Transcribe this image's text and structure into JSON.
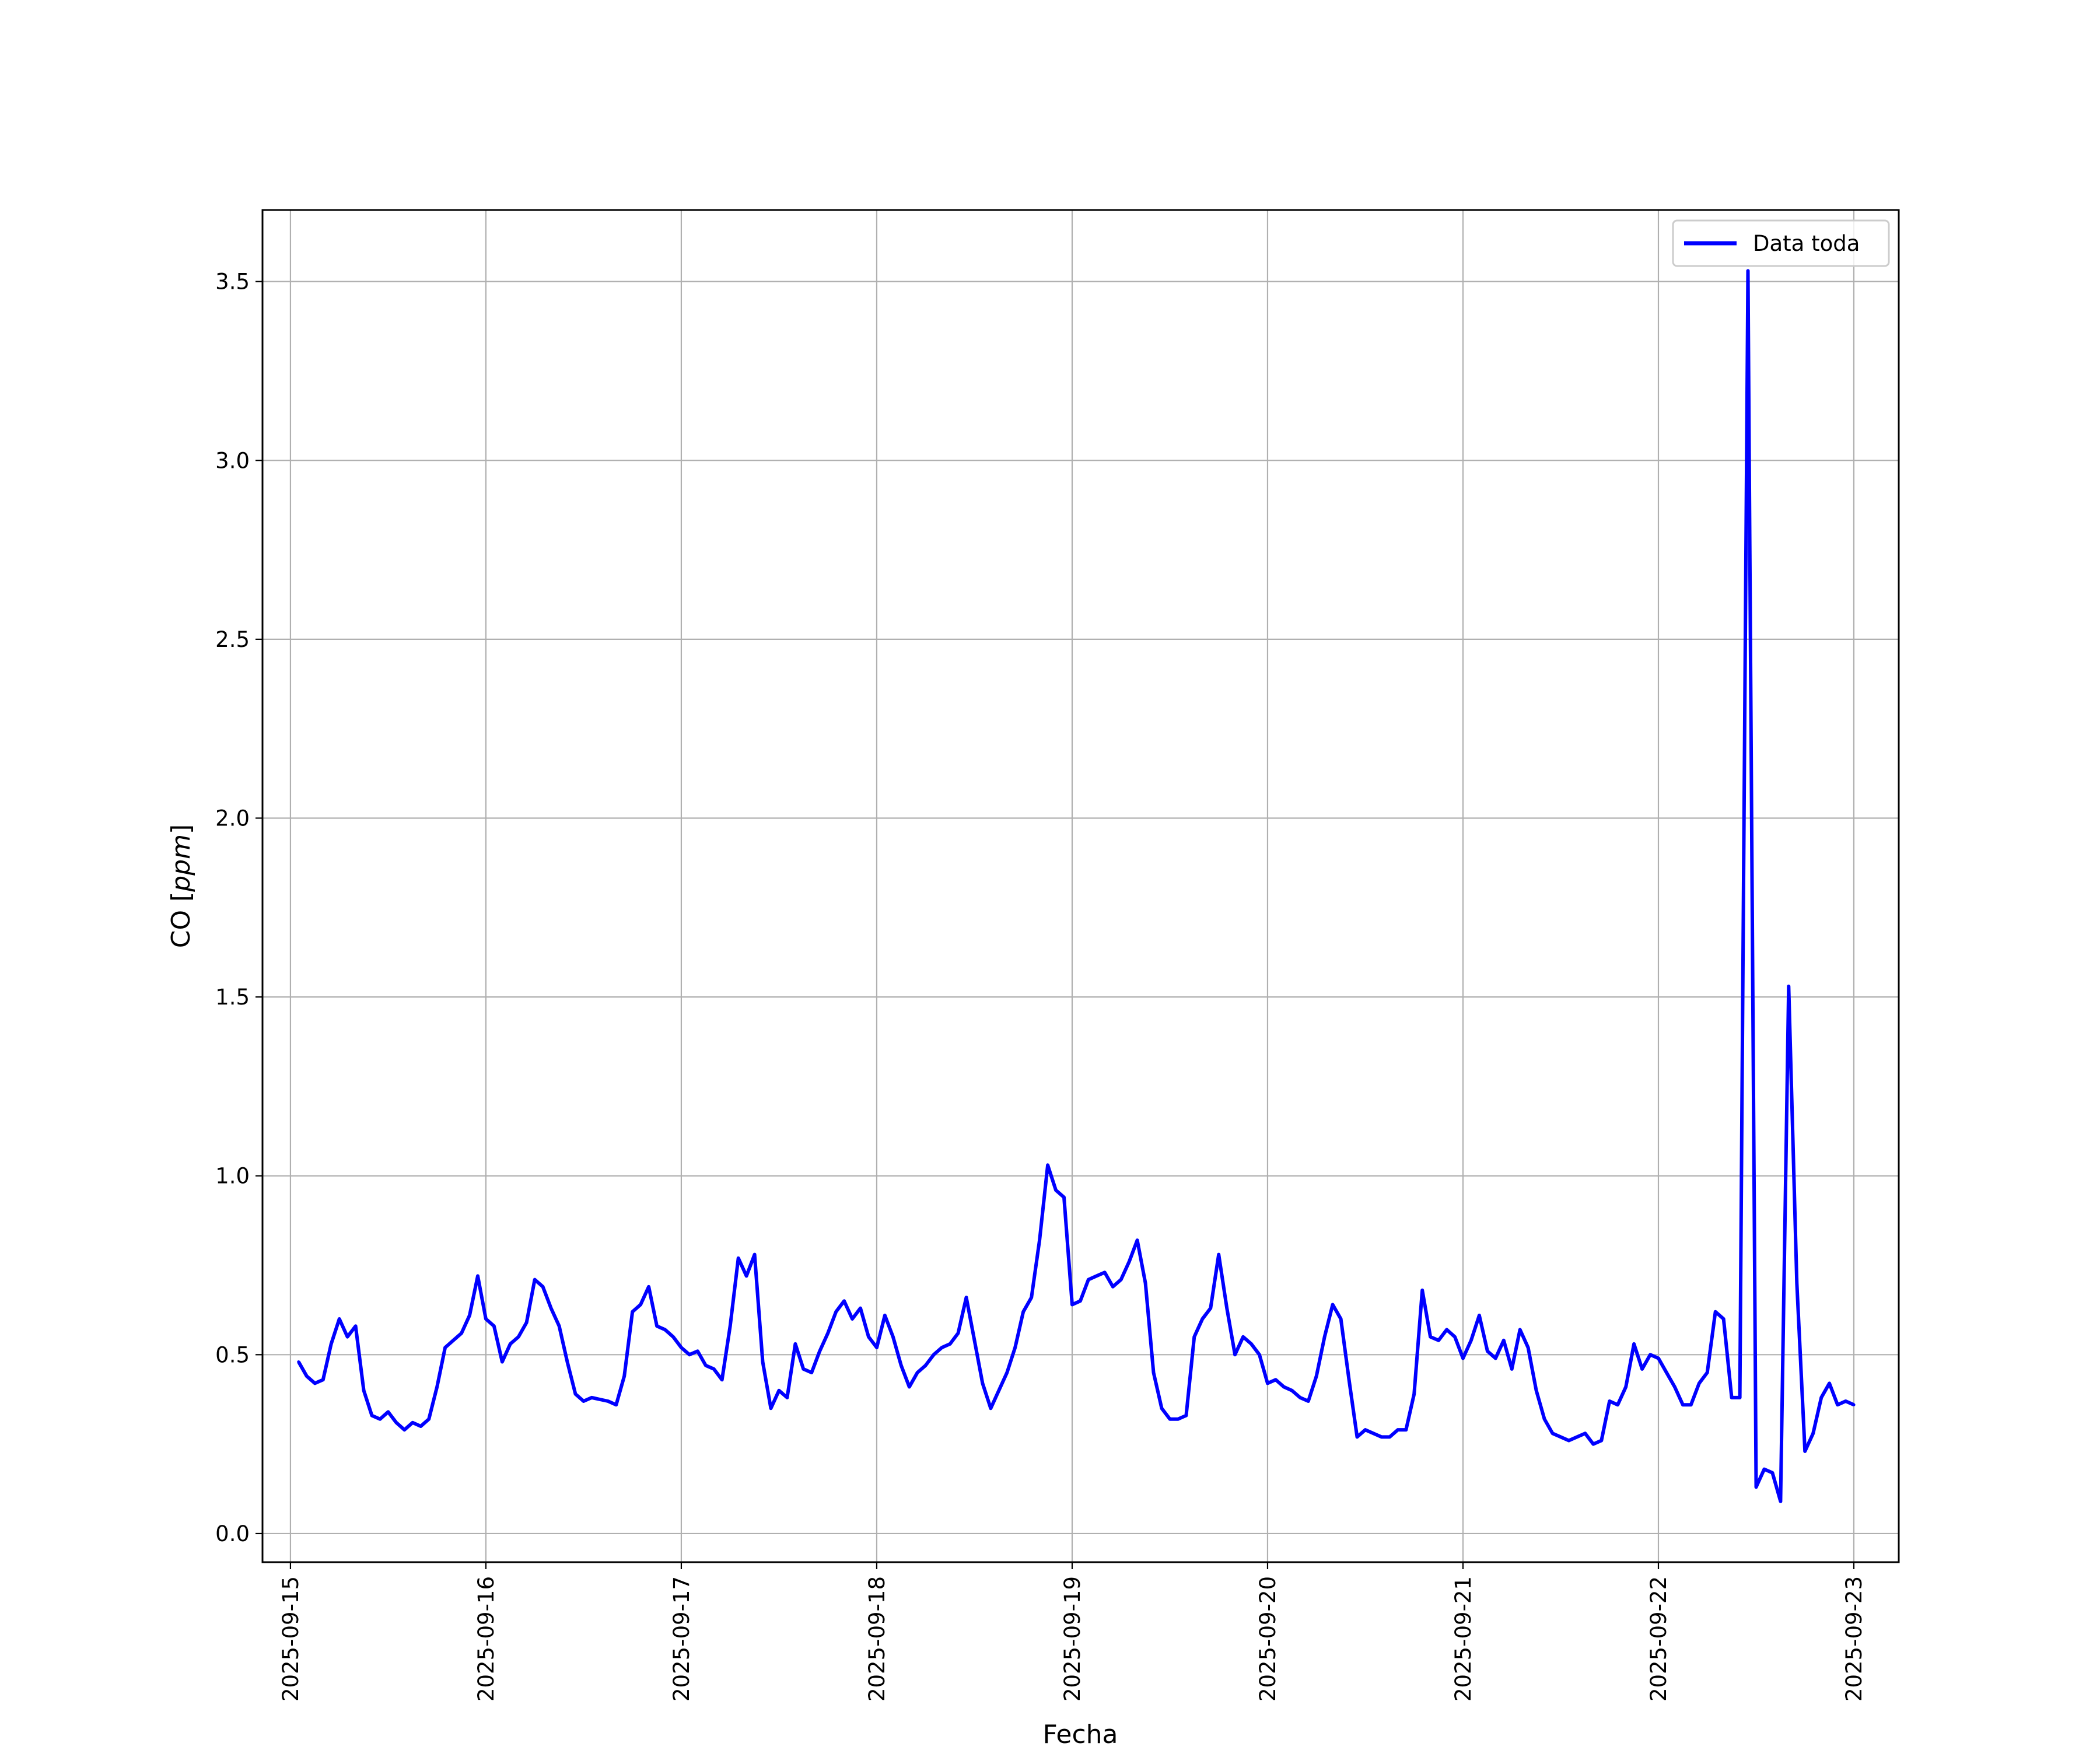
{
  "chart_data": {
    "type": "line",
    "title": "",
    "xlabel": "Fecha",
    "ylabel_main": "CO [",
    "ylabel_unit": "ppm",
    "ylabel_end": "]",
    "xlim": [
      "2025-09-14T20:34:00",
      "2025-09-23T05:31:00"
    ],
    "ylim": [
      -0.08,
      3.7
    ],
    "x_ticks": [
      "2025-09-15",
      "2025-09-16",
      "2025-09-17",
      "2025-09-18",
      "2025-09-19",
      "2025-09-20",
      "2025-09-21",
      "2025-09-22",
      "2025-09-23"
    ],
    "y_ticks": [
      "0.0",
      "0.5",
      "1.0",
      "1.5",
      "2.0",
      "2.5",
      "3.0",
      "3.5"
    ],
    "grid": true,
    "legend_position": "top-right",
    "series": [
      {
        "name": "Data toda",
        "color": "#0000ff",
        "x": [
          "2025-09-15T01:00",
          "2025-09-15T02:00",
          "2025-09-15T03:00",
          "2025-09-15T04:00",
          "2025-09-15T05:00",
          "2025-09-15T06:00",
          "2025-09-15T07:00",
          "2025-09-15T08:00",
          "2025-09-15T09:00",
          "2025-09-15T10:00",
          "2025-09-15T11:00",
          "2025-09-15T12:00",
          "2025-09-15T13:00",
          "2025-09-15T14:00",
          "2025-09-15T15:00",
          "2025-09-15T16:00",
          "2025-09-15T17:00",
          "2025-09-15T18:00",
          "2025-09-15T19:00",
          "2025-09-15T20:00",
          "2025-09-15T21:00",
          "2025-09-15T22:00",
          "2025-09-15T23:00",
          "2025-09-16T00:00",
          "2025-09-16T01:00",
          "2025-09-16T02:00",
          "2025-09-16T03:00",
          "2025-09-16T04:00",
          "2025-09-16T05:00",
          "2025-09-16T06:00",
          "2025-09-16T07:00",
          "2025-09-16T08:00",
          "2025-09-16T09:00",
          "2025-09-16T10:00",
          "2025-09-16T11:00",
          "2025-09-16T12:00",
          "2025-09-16T13:00",
          "2025-09-16T14:00",
          "2025-09-16T15:00",
          "2025-09-16T16:00",
          "2025-09-16T17:00",
          "2025-09-16T18:00",
          "2025-09-16T19:00",
          "2025-09-16T20:00",
          "2025-09-16T21:00",
          "2025-09-16T22:00",
          "2025-09-16T23:00",
          "2025-09-17T00:00",
          "2025-09-17T01:00",
          "2025-09-17T02:00",
          "2025-09-17T03:00",
          "2025-09-17T04:00",
          "2025-09-17T05:00",
          "2025-09-17T06:00",
          "2025-09-17T07:00",
          "2025-09-17T08:00",
          "2025-09-17T09:00",
          "2025-09-17T10:00",
          "2025-09-17T11:00",
          "2025-09-17T12:00",
          "2025-09-17T13:00",
          "2025-09-17T14:00",
          "2025-09-17T15:00",
          "2025-09-17T16:00",
          "2025-09-17T17:00",
          "2025-09-17T18:00",
          "2025-09-17T19:00",
          "2025-09-17T20:00",
          "2025-09-17T21:00",
          "2025-09-17T22:00",
          "2025-09-17T23:00",
          "2025-09-18T00:00",
          "2025-09-18T01:00",
          "2025-09-18T02:00",
          "2025-09-18T03:00",
          "2025-09-18T04:00",
          "2025-09-18T05:00",
          "2025-09-18T06:00",
          "2025-09-18T07:00",
          "2025-09-18T08:00",
          "2025-09-18T09:00",
          "2025-09-18T10:00",
          "2025-09-18T11:00",
          "2025-09-18T12:00",
          "2025-09-18T13:00",
          "2025-09-18T14:00",
          "2025-09-18T15:00",
          "2025-09-18T16:00",
          "2025-09-18T17:00",
          "2025-09-18T18:00",
          "2025-09-18T19:00",
          "2025-09-18T20:00",
          "2025-09-18T21:00",
          "2025-09-18T22:00",
          "2025-09-18T23:00",
          "2025-09-19T00:00",
          "2025-09-19T01:00",
          "2025-09-19T02:00",
          "2025-09-19T03:00",
          "2025-09-19T04:00",
          "2025-09-19T05:00",
          "2025-09-19T06:00",
          "2025-09-19T07:00",
          "2025-09-19T08:00",
          "2025-09-19T09:00",
          "2025-09-19T10:00",
          "2025-09-19T11:00",
          "2025-09-19T12:00",
          "2025-09-19T13:00",
          "2025-09-19T14:00",
          "2025-09-19T15:00",
          "2025-09-19T16:00",
          "2025-09-19T17:00",
          "2025-09-19T18:00",
          "2025-09-19T19:00",
          "2025-09-19T20:00",
          "2025-09-19T21:00",
          "2025-09-19T22:00",
          "2025-09-19T23:00",
          "2025-09-20T00:00",
          "2025-09-20T01:00",
          "2025-09-20T02:00",
          "2025-09-20T03:00",
          "2025-09-20T04:00",
          "2025-09-20T05:00",
          "2025-09-20T06:00",
          "2025-09-20T07:00",
          "2025-09-20T08:00",
          "2025-09-20T09:00",
          "2025-09-20T10:00",
          "2025-09-20T11:00",
          "2025-09-20T12:00",
          "2025-09-20T13:00",
          "2025-09-20T14:00",
          "2025-09-20T15:00",
          "2025-09-20T16:00",
          "2025-09-20T17:00",
          "2025-09-20T18:00",
          "2025-09-20T19:00",
          "2025-09-20T20:00",
          "2025-09-20T21:00",
          "2025-09-20T22:00",
          "2025-09-20T23:00",
          "2025-09-21T00:00",
          "2025-09-21T01:00",
          "2025-09-21T02:00",
          "2025-09-21T03:00",
          "2025-09-21T04:00",
          "2025-09-21T05:00",
          "2025-09-21T06:00",
          "2025-09-21T07:00",
          "2025-09-21T08:00",
          "2025-09-21T09:00",
          "2025-09-21T10:00",
          "2025-09-21T11:00",
          "2025-09-21T12:00",
          "2025-09-21T13:00",
          "2025-09-21T14:00",
          "2025-09-21T15:00",
          "2025-09-21T16:00",
          "2025-09-21T17:00",
          "2025-09-21T18:00",
          "2025-09-21T19:00",
          "2025-09-21T20:00",
          "2025-09-21T21:00",
          "2025-09-21T22:00",
          "2025-09-21T23:00",
          "2025-09-22T00:00",
          "2025-09-22T01:00",
          "2025-09-22T02:00",
          "2025-09-22T03:00",
          "2025-09-22T04:00",
          "2025-09-22T05:00",
          "2025-09-22T06:00",
          "2025-09-22T07:00",
          "2025-09-22T08:00",
          "2025-09-22T09:00",
          "2025-09-22T10:00",
          "2025-09-22T11:00",
          "2025-09-22T12:00",
          "2025-09-22T13:00",
          "2025-09-22T14:00",
          "2025-09-22T15:00",
          "2025-09-22T16:00",
          "2025-09-22T17:00",
          "2025-09-22T18:00",
          "2025-09-22T19:00",
          "2025-09-22T20:00",
          "2025-09-22T21:00",
          "2025-09-22T22:00",
          "2025-09-22T23:00",
          "2025-09-23T00:00"
        ],
        "values": [
          0.48,
          0.44,
          0.42,
          0.43,
          0.53,
          0.6,
          0.55,
          0.58,
          0.4,
          0.33,
          0.32,
          0.34,
          0.31,
          0.29,
          0.31,
          0.3,
          0.32,
          0.41,
          0.52,
          0.54,
          0.56,
          0.61,
          0.72,
          0.6,
          0.58,
          0.48,
          0.53,
          0.55,
          0.59,
          0.71,
          0.69,
          0.63,
          0.58,
          0.48,
          0.39,
          0.37,
          0.38,
          0.375,
          0.37,
          0.36,
          0.44,
          0.62,
          0.64,
          0.69,
          0.58,
          0.57,
          0.55,
          0.52,
          0.5,
          0.51,
          0.47,
          0.46,
          0.43,
          0.58,
          0.77,
          0.72,
          0.78,
          0.48,
          0.35,
          0.4,
          0.38,
          0.53,
          0.46,
          0.45,
          0.51,
          0.56,
          0.62,
          0.65,
          0.6,
          0.63,
          0.55,
          0.52,
          0.61,
          0.55,
          0.47,
          0.41,
          0.45,
          0.47,
          0.5,
          0.52,
          0.53,
          0.56,
          0.66,
          0.54,
          0.42,
          0.35,
          0.4,
          0.45,
          0.52,
          0.62,
          0.66,
          0.82,
          1.03,
          0.96,
          0.94,
          0.64,
          0.65,
          0.71,
          0.72,
          0.73,
          0.69,
          0.71,
          0.76,
          0.82,
          0.7,
          0.45,
          0.35,
          0.32,
          0.32,
          0.33,
          0.55,
          0.6,
          0.63,
          0.78,
          0.63,
          0.5,
          0.55,
          0.53,
          0.5,
          0.42,
          0.43,
          0.41,
          0.4,
          0.38,
          0.37,
          0.44,
          0.55,
          0.64,
          0.6,
          0.43,
          0.27,
          0.29,
          0.28,
          0.27,
          0.27,
          0.29,
          0.29,
          0.39,
          0.68,
          0.55,
          0.54,
          0.57,
          0.55,
          0.49,
          0.54,
          0.61,
          0.51,
          0.49,
          0.54,
          0.46,
          0.57,
          0.52,
          0.4,
          0.32,
          0.28,
          0.27,
          0.26,
          0.27,
          0.28,
          0.25,
          0.26,
          0.37,
          0.36,
          0.41,
          0.53,
          0.46,
          0.5,
          0.49,
          0.45,
          0.41,
          0.36,
          0.36,
          0.42,
          0.45,
          0.62,
          0.6,
          0.38,
          0.38,
          3.53,
          0.13,
          0.18,
          0.17,
          0.09,
          1.53,
          0.7,
          0.23,
          0.28,
          0.38,
          0.42,
          0.36,
          0.37,
          0.36
        ]
      }
    ]
  }
}
